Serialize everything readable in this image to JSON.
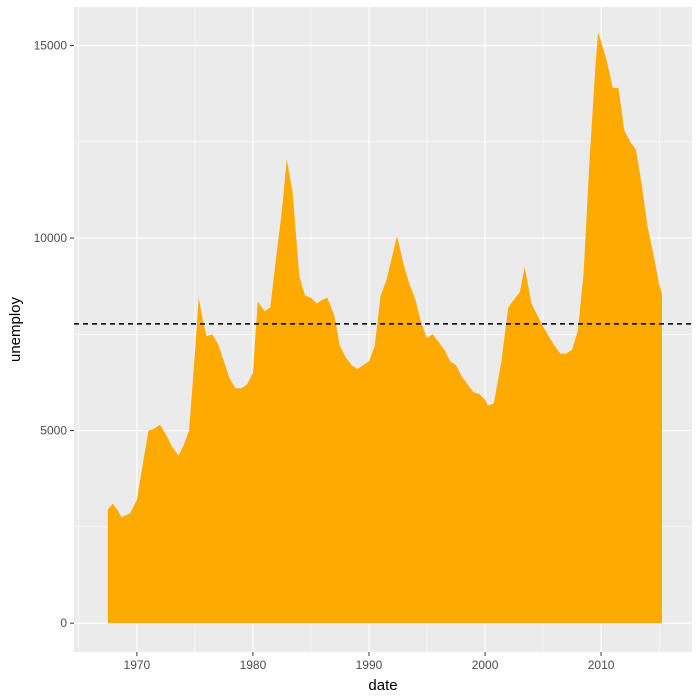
{
  "chart_data": {
    "type": "area",
    "title": "",
    "xlabel": "date",
    "ylabel": "unemploy",
    "xlim": [
      "1964-08-01",
      "2017-11-01"
    ],
    "ylim": [
      -750,
      16000
    ],
    "x_ticks": [
      "1970-01-01",
      "1980-01-01",
      "1990-01-01",
      "2000-01-01",
      "2010-01-01"
    ],
    "x_tick_labels": [
      "1970",
      "1980",
      "1990",
      "2000",
      "2010"
    ],
    "y_ticks": [
      0,
      5000,
      10000,
      15000
    ],
    "y_tick_labels": [
      "0",
      "5000",
      "10000",
      "15000"
    ],
    "grid": true,
    "fill_color": "#FFAA00",
    "panel_color": "#EBEBEB",
    "grid_color": "#FFFFFF",
    "reference_line": {
      "type": "hline",
      "y": 7771,
      "style": "dashed",
      "color": "#000000"
    },
    "series": [
      {
        "values": [
          [
            "1967-07-01",
            2950
          ],
          [
            "1967-12-01",
            3100
          ],
          [
            "1968-06-01",
            2900
          ],
          [
            "1968-09-01",
            2750
          ],
          [
            "1969-06-01",
            2850
          ],
          [
            "1970-01-01",
            3200
          ],
          [
            "1970-07-01",
            4100
          ],
          [
            "1971-01-01",
            5000
          ],
          [
            "1971-07-01",
            5050
          ],
          [
            "1972-01-01",
            5150
          ],
          [
            "1972-07-01",
            4900
          ],
          [
            "1973-01-01",
            4600
          ],
          [
            "1973-08-01",
            4350
          ],
          [
            "1974-01-01",
            4600
          ],
          [
            "1974-07-01",
            5000
          ],
          [
            "1975-01-01",
            7000
          ],
          [
            "1975-05-01",
            8450
          ],
          [
            "1975-09-01",
            7900
          ],
          [
            "1976-01-01",
            7450
          ],
          [
            "1976-07-01",
            7500
          ],
          [
            "1977-01-01",
            7250
          ],
          [
            "1977-07-01",
            6800
          ],
          [
            "1978-01-01",
            6350
          ],
          [
            "1978-07-01",
            6100
          ],
          [
            "1979-01-01",
            6100
          ],
          [
            "1979-07-01",
            6200
          ],
          [
            "1980-01-01",
            6500
          ],
          [
            "1980-06-01",
            8350
          ],
          [
            "1981-01-01",
            8100
          ],
          [
            "1981-07-01",
            8200
          ],
          [
            "1982-01-01",
            9500
          ],
          [
            "1982-07-01",
            10700
          ],
          [
            "1982-12-01",
            12050
          ],
          [
            "1983-06-01",
            11200
          ],
          [
            "1984-01-01",
            9000
          ],
          [
            "1984-07-01",
            8500
          ],
          [
            "1985-01-01",
            8450
          ],
          [
            "1985-07-01",
            8300
          ],
          [
            "1986-01-01",
            8400
          ],
          [
            "1986-06-01",
            8450
          ],
          [
            "1987-01-01",
            8000
          ],
          [
            "1987-07-01",
            7200
          ],
          [
            "1988-01-01",
            6900
          ],
          [
            "1988-07-01",
            6700
          ],
          [
            "1989-01-01",
            6600
          ],
          [
            "1989-07-01",
            6700
          ],
          [
            "1990-01-01",
            6800
          ],
          [
            "1990-07-01",
            7200
          ],
          [
            "1991-01-01",
            8500
          ],
          [
            "1991-07-01",
            8900
          ],
          [
            "1992-06-01",
            10050
          ],
          [
            "1993-01-01",
            9300
          ],
          [
            "1993-07-01",
            8800
          ],
          [
            "1994-01-01",
            8400
          ],
          [
            "1994-07-01",
            7800
          ],
          [
            "1995-01-01",
            7400
          ],
          [
            "1995-07-01",
            7500
          ],
          [
            "1996-01-01",
            7300
          ],
          [
            "1996-07-01",
            7100
          ],
          [
            "1997-01-01",
            6800
          ],
          [
            "1997-07-01",
            6700
          ],
          [
            "1998-01-01",
            6400
          ],
          [
            "1998-07-01",
            6200
          ],
          [
            "1999-01-01",
            6000
          ],
          [
            "1999-07-01",
            5950
          ],
          [
            "2000-01-01",
            5800
          ],
          [
            "2000-04-01",
            5650
          ],
          [
            "2000-10-01",
            5700
          ],
          [
            "2001-06-01",
            6800
          ],
          [
            "2002-01-01",
            8200
          ],
          [
            "2002-07-01",
            8400
          ],
          [
            "2003-01-01",
            8600
          ],
          [
            "2003-06-01",
            9250
          ],
          [
            "2004-01-01",
            8300
          ],
          [
            "2004-07-01",
            8000
          ],
          [
            "2005-01-01",
            7700
          ],
          [
            "2005-07-01",
            7450
          ],
          [
            "2006-01-01",
            7200
          ],
          [
            "2006-07-01",
            7000
          ],
          [
            "2007-01-01",
            7000
          ],
          [
            "2007-07-01",
            7100
          ],
          [
            "2008-01-01",
            7600
          ],
          [
            "2008-07-01",
            9100
          ],
          [
            "2009-01-01",
            12000
          ],
          [
            "2009-07-01",
            14400
          ],
          [
            "2009-10-01",
            15350
          ],
          [
            "2010-07-01",
            14600
          ],
          [
            "2011-01-01",
            13900
          ],
          [
            "2011-07-01",
            13900
          ],
          [
            "2012-01-01",
            12800
          ],
          [
            "2012-07-01",
            12500
          ],
          [
            "2013-01-01",
            12300
          ],
          [
            "2013-07-01",
            11400
          ],
          [
            "2014-01-01",
            10300
          ],
          [
            "2014-07-01",
            9600
          ],
          [
            "2015-01-01",
            8800
          ],
          [
            "2015-04-01",
            8550
          ]
        ]
      }
    ]
  }
}
